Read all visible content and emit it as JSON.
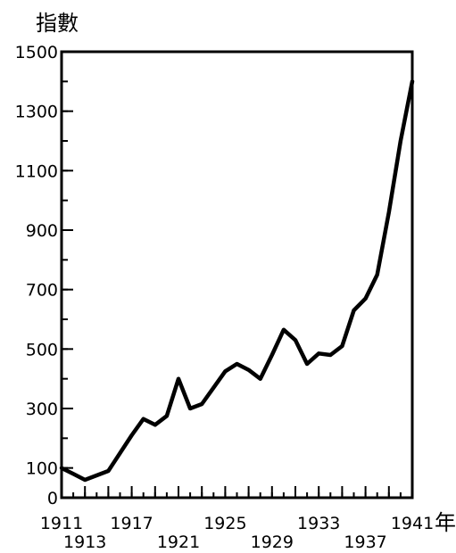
{
  "chart_data": {
    "type": "line",
    "ylabel": "指數",
    "xlabel": "年",
    "xlim": [
      1911,
      1941
    ],
    "ylim": [
      0,
      1500
    ],
    "y_ticks": [
      0,
      100,
      300,
      500,
      700,
      900,
      1100,
      1300,
      1500
    ],
    "x_ticks_upper": [
      1911,
      1917,
      1925,
      1933,
      1941
    ],
    "x_ticks_lower": [
      1913,
      1921,
      1929,
      1937
    ],
    "grid": false,
    "series": [
      {
        "x": [
          1911,
          1912,
          1913,
          1914,
          1915,
          1916,
          1917,
          1918,
          1919,
          1920,
          1921,
          1922,
          1923,
          1924,
          1925,
          1926,
          1927,
          1928,
          1929,
          1930,
          1931,
          1932,
          1933,
          1934,
          1935,
          1936,
          1937,
          1938,
          1939,
          1940,
          1941
        ],
        "values": [
          100,
          80,
          60,
          75,
          90,
          150,
          210,
          265,
          245,
          275,
          400,
          300,
          315,
          370,
          425,
          450,
          430,
          400,
          480,
          565,
          530,
          450,
          485,
          480,
          510,
          630,
          670,
          750,
          960,
          1200,
          1400
        ]
      }
    ]
  }
}
